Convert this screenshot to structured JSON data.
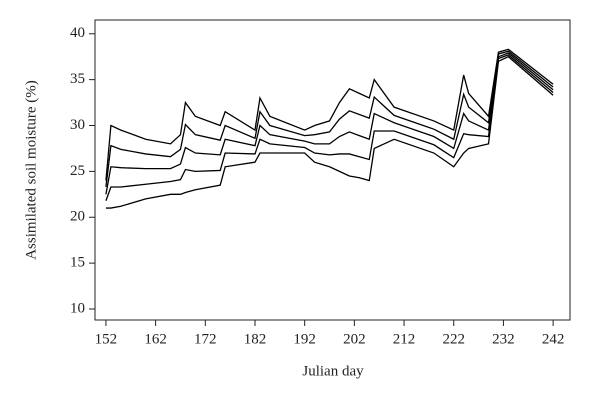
{
  "chart_data": {
    "type": "line",
    "x_label": "Julian day",
    "y_label": "Assimilated soil moisture (%)",
    "x": [
      152,
      153,
      155,
      160,
      165,
      167,
      168,
      170,
      175,
      176,
      182,
      183,
      185,
      192,
      194,
      197,
      199,
      201,
      203,
      205,
      206,
      210,
      218,
      222,
      224,
      225,
      229,
      231,
      233,
      242
    ],
    "series": [
      {
        "color": "#000000",
        "values": [
          21,
          21,
          21.2,
          22,
          22.5,
          22.5,
          22.7,
          23,
          23.5,
          25.5,
          26,
          27,
          27,
          27,
          26,
          25.5,
          25,
          24.5,
          24.3,
          24,
          27.5,
          28.5,
          27,
          25.5,
          27,
          27.5,
          28,
          37,
          37.5,
          33.3
        ]
      },
      {
        "color": "#000000",
        "values": [
          21.8,
          23.3,
          23.3,
          23.6,
          23.9,
          24.1,
          25.2,
          25,
          25.1,
          27,
          26.9,
          28.5,
          28,
          27.6,
          27,
          26.8,
          26.9,
          26.9,
          26.6,
          26.3,
          29.4,
          29.4,
          27.9,
          26.5,
          29.1,
          29,
          28.8,
          37.3,
          37.7,
          33.6
        ]
      },
      {
        "color": "#000000",
        "values": [
          22.5,
          25.5,
          25.4,
          25.3,
          25.3,
          25.8,
          27.6,
          27,
          26.8,
          28.5,
          27.8,
          30,
          29,
          28.3,
          28,
          28,
          28.8,
          29.3,
          28.9,
          28.5,
          31.3,
          30.3,
          28.8,
          27.5,
          31.3,
          30.5,
          29.5,
          37.5,
          37.9,
          33.9
        ]
      },
      {
        "color": "#000000",
        "values": [
          23.3,
          27.8,
          27.4,
          26.9,
          26.6,
          27.4,
          30.1,
          29,
          28.4,
          30,
          28.6,
          31.5,
          30,
          28.9,
          29,
          29.3,
          30.7,
          31.6,
          31.2,
          30.8,
          33.1,
          31.1,
          29.6,
          28.5,
          33.4,
          32,
          30.3,
          37.8,
          38.1,
          34.2
        ]
      },
      {
        "color": "#000000",
        "values": [
          24,
          30,
          29.5,
          28.5,
          28,
          29,
          32.5,
          31,
          30,
          31.5,
          29.5,
          33,
          31,
          29.5,
          30,
          30.5,
          32.5,
          34,
          33.5,
          33,
          35,
          32,
          30.5,
          29.5,
          35.5,
          33.5,
          31,
          38,
          38.3,
          34.5
        ]
      }
    ],
    "xlim": [
      149.8,
      245.4
    ],
    "ylim": [
      8.8,
      41.5
    ],
    "xticks": [
      152,
      162,
      172,
      182,
      192,
      202,
      212,
      222,
      232,
      242
    ],
    "yticks": [
      10,
      15,
      20,
      25,
      30,
      35,
      40
    ]
  }
}
